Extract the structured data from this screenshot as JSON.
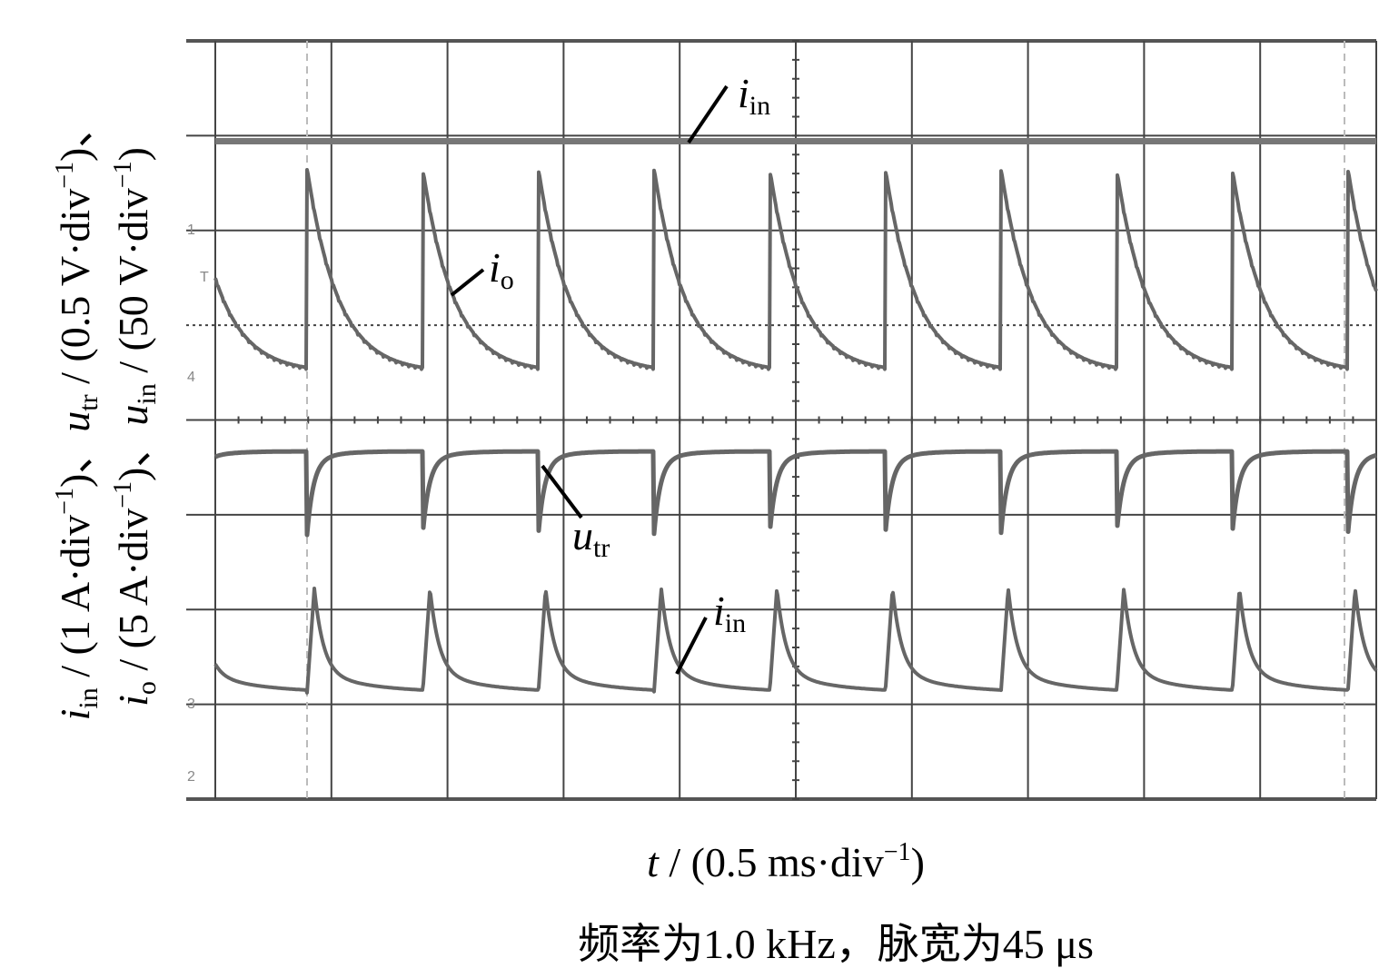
{
  "figure": {
    "y_label": [
      [
        "i",
        "in",
        " / (1 A·div",
        "−1",
        ")、",
        "u",
        "tr",
        " / (0.5 V·div",
        "−1",
        ")、"
      ],
      [
        "i",
        "o",
        " / (5 A·div",
        "−1",
        ")、",
        "u",
        "in",
        " / (50 V·div",
        "−1",
        ")"
      ]
    ],
    "x_label": [
      "t",
      " / (0.5 ms·div",
      "−1",
      ")"
    ],
    "caption": "频率为1.0 kHz，脉宽为45 μs",
    "trace_labels": [
      [
        "i",
        "in"
      ],
      [
        "i",
        "o"
      ],
      [
        "u",
        "tr"
      ],
      [
        "i",
        "in"
      ]
    ],
    "channel_markers": [
      "1",
      "T",
      "4",
      "3",
      "2"
    ]
  }
}
